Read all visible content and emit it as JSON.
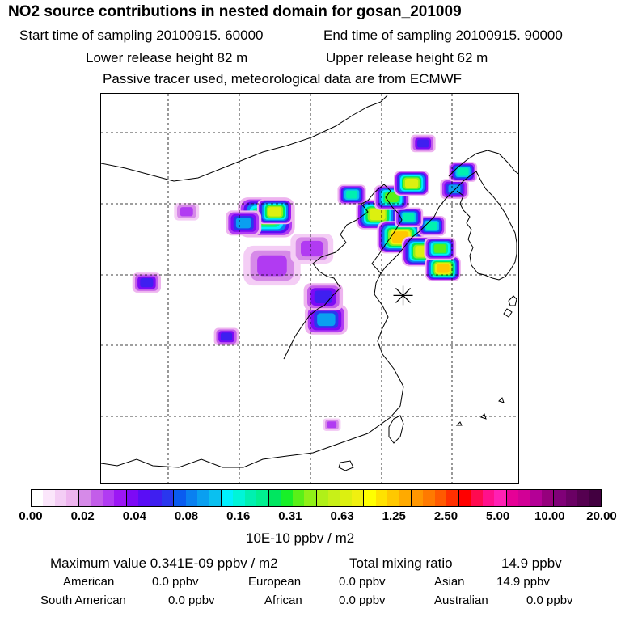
{
  "header": {
    "title": "NO2 source contributions in nested domain for gosan_201009",
    "start_label": "Start time of sampling 20100915. 60000",
    "end_label": "End time of sampling 20100915. 90000",
    "lower_label": "Lower release height   82 m",
    "upper_label": "Upper release height   62 m",
    "note": "Passive tracer used, meteorological data are from ECMWF"
  },
  "chart_data": {
    "type": "heatmap",
    "title": "NO2 source contributions in nested domain for gosan_201009",
    "colorbar": {
      "ticks": [
        "0.00",
        "0.02",
        "0.04",
        "0.08",
        "0.16",
        "0.31",
        "0.63",
        "1.25",
        "2.50",
        "5.00",
        "10.00",
        "20.00"
      ],
      "unit": "10E-10 ppbv / m2",
      "colors": [
        [
          "#ffffff",
          "#fbe6fb",
          "#f4cdf5",
          "#eeb4ef"
        ],
        [
          "#d68ae8",
          "#c35de9",
          "#b13bf2",
          "#9c17f4"
        ],
        [
          "#7d0af5",
          "#5a0df5",
          "#3f1ff0",
          "#2a37ee"
        ],
        [
          "#0a5cf0",
          "#0a80f0",
          "#0a9ff0",
          "#0ac0f0"
        ],
        [
          "#00f0ff",
          "#00f5d8",
          "#00f0b0",
          "#00f090"
        ],
        [
          "#00e660",
          "#18f028",
          "#5af018",
          "#90f018"
        ],
        [
          "#b0f018",
          "#c8f018",
          "#dcf010",
          "#f0f010"
        ],
        [
          "#ffff00",
          "#ffe200",
          "#ffc800",
          "#ffaa00"
        ],
        [
          "#ff9600",
          "#ff7a00",
          "#ff5a00",
          "#ff3000"
        ],
        [
          "#ff0000",
          "#ff0a50",
          "#ff108c",
          "#ff20b4"
        ],
        [
          "#e60096",
          "#d20096",
          "#b40096",
          "#96007d"
        ],
        [
          "#800078",
          "#6a0064",
          "#550050",
          "#420040"
        ]
      ]
    },
    "hotspots": [
      {
        "lon": 124.4,
        "lat": 39.0,
        "level": 6,
        "spread": 1.2
      },
      {
        "lon": 126.0,
        "lat": 37.4,
        "level": 7,
        "spread": 1.3
      },
      {
        "lon": 127.6,
        "lat": 36.4,
        "level": 6,
        "spread": 1.2
      },
      {
        "lon": 129.0,
        "lat": 35.2,
        "level": 7,
        "spread": 1.0
      },
      {
        "lon": 128.8,
        "lat": 36.6,
        "level": 5,
        "spread": 0.9
      },
      {
        "lon": 128.2,
        "lat": 38.2,
        "level": 4,
        "spread": 0.8
      },
      {
        "lon": 126.6,
        "lat": 38.8,
        "level": 4,
        "spread": 0.8
      },
      {
        "lon": 125.4,
        "lat": 40.2,
        "level": 5,
        "spread": 1.0
      },
      {
        "lon": 126.8,
        "lat": 41.2,
        "level": 6,
        "spread": 1.0
      },
      {
        "lon": 122.6,
        "lat": 40.4,
        "level": 4,
        "spread": 0.8
      },
      {
        "lon": 116.6,
        "lat": 38.8,
        "level": 5,
        "spread": 1.6
      },
      {
        "lon": 117.2,
        "lat": 39.2,
        "level": 6,
        "spread": 1.0
      },
      {
        "lon": 115.0,
        "lat": 38.4,
        "level": 3,
        "spread": 1.0
      },
      {
        "lon": 129.8,
        "lat": 40.8,
        "level": 3,
        "spread": 0.8
      },
      {
        "lon": 130.4,
        "lat": 42.0,
        "level": 4,
        "spread": 0.8
      },
      {
        "lon": 127.6,
        "lat": 44.0,
        "level": 2,
        "spread": 0.7
      },
      {
        "lon": 120.8,
        "lat": 31.6,
        "level": 3,
        "spread": 1.2
      },
      {
        "lon": 120.6,
        "lat": 33.2,
        "level": 2,
        "spread": 1.1
      },
      {
        "lon": 108.2,
        "lat": 34.2,
        "level": 2,
        "spread": 0.8
      },
      {
        "lon": 117.0,
        "lat": 35.4,
        "level": 1,
        "spread": 1.6
      },
      {
        "lon": 119.8,
        "lat": 36.6,
        "level": 1,
        "spread": 1.2
      },
      {
        "lon": 113.8,
        "lat": 30.4,
        "level": 2,
        "spread": 0.7
      },
      {
        "lon": 111.0,
        "lat": 39.2,
        "level": 1,
        "spread": 0.7
      },
      {
        "lon": 121.2,
        "lat": 24.2,
        "level": 1,
        "spread": 0.5
      }
    ],
    "receptor": {
      "name": "gosan",
      "lon": 126.2,
      "lat": 33.3
    }
  },
  "stats": {
    "max_label": "Maximum value  0.341E-09 ppbv / m2",
    "total_label": "Total mixing ratio",
    "total_value": "14.9 ppbv",
    "regions_row1": [
      {
        "label": "American",
        "value": "0.0 ppbv"
      },
      {
        "label": "European",
        "value": "0.0 ppbv"
      },
      {
        "label": "Asian",
        "value": "14.9 ppbv"
      }
    ],
    "regions_row2": [
      {
        "label": "South American",
        "value": "0.0 ppbv"
      },
      {
        "label": "African",
        "value": "0.0 ppbv"
      },
      {
        "label": "Australian",
        "value": "0.0 ppbv"
      }
    ]
  }
}
